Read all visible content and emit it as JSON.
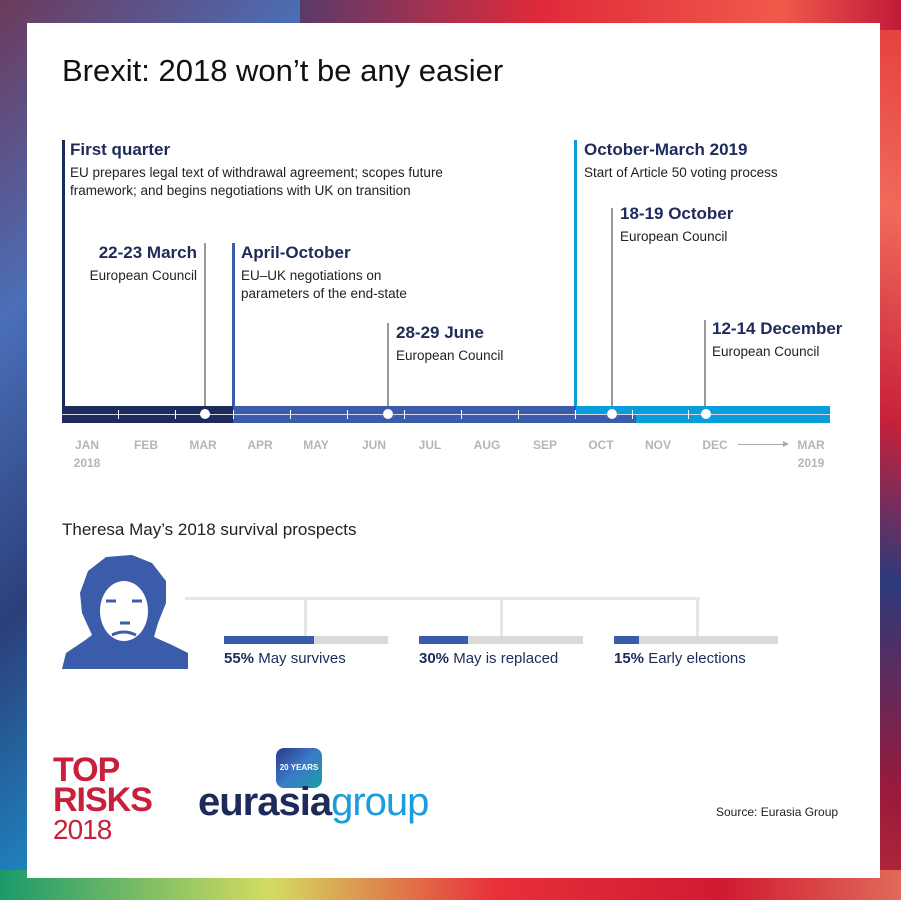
{
  "title": "Brexit: 2018 won’t be any easier",
  "timeline": {
    "events": [
      {
        "heading": "First quarter",
        "desc": [
          "EU prepares legal text of withdrawal agreement; scopes future",
          "framework; and begins negotiations with UK on transition"
        ]
      },
      {
        "heading": "22-23 March",
        "desc": [
          "European Council"
        ]
      },
      {
        "heading": "April-October",
        "desc": [
          "EU–UK negotiations  on",
          "parameters of the end-state"
        ]
      },
      {
        "heading": "28-29 June",
        "desc": [
          "European Council"
        ]
      },
      {
        "heading": "October-March 2019",
        "desc": [
          "Start of Article 50 voting process"
        ]
      },
      {
        "heading": "18-19 October",
        "desc": [
          "European Council"
        ]
      },
      {
        "heading": "12-14 December",
        "desc": [
          "European Council"
        ]
      }
    ],
    "months": [
      "JAN",
      "FEB",
      "MAR",
      "APR",
      "MAY",
      "JUN",
      "JUL",
      "AUG",
      "SEP",
      "OCT",
      "NOV",
      "DEC",
      "MAR"
    ],
    "start_year": "2018",
    "end_year": "2019",
    "colors": {
      "q1": "#1c2a5c",
      "mid": "#3a5cab",
      "late": "#0a9ddc"
    }
  },
  "survival": {
    "heading": "Theresa May’s 2018 survival prospects",
    "outcomes": [
      {
        "pct": "55%",
        "label": "May survives",
        "value": 55
      },
      {
        "pct": "30%",
        "label": "May is replaced",
        "value": 30
      },
      {
        "pct": "15%",
        "label": "Early elections",
        "value": 15
      }
    ]
  },
  "footer": {
    "top_risks": [
      "TOP",
      "RISKS",
      "2018"
    ],
    "logo": [
      "eurasia",
      "group"
    ],
    "logo_badge": "20 YEARS",
    "source": "Source: Eurasia Group"
  }
}
